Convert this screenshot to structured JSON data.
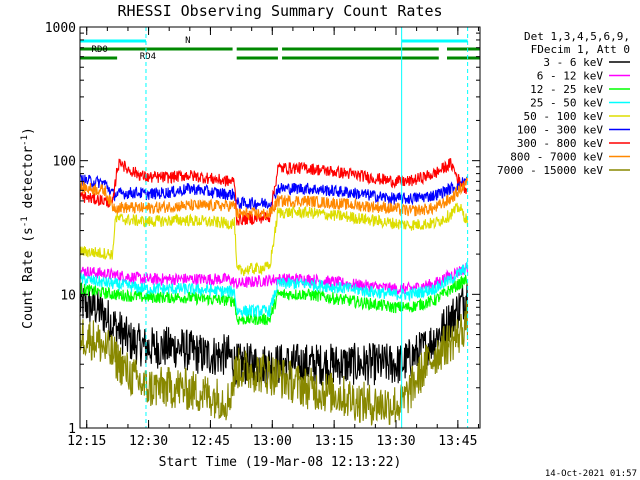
{
  "chart_data": {
    "type": "line",
    "title": "RHESSI Observing Summary Count Rates",
    "xlabel": "Start Time (19-Mar-08 12:13:22)",
    "ylabel_main": "Count Rate (s",
    "ylabel_sup": "-1",
    "ylabel_mid": " detector",
    "ylabel_sup2": "-1",
    "ylabel_end": ")",
    "y_scale": "log",
    "ylim": [
      1,
      1000
    ],
    "xlim_minutes": [
      0,
      97
    ],
    "x_ticks": [
      {
        "min": 1.63,
        "label": "12:15"
      },
      {
        "min": 16.63,
        "label": "12:30"
      },
      {
        "min": 31.63,
        "label": "12:45"
      },
      {
        "min": 46.63,
        "label": "13:00"
      },
      {
        "min": 61.63,
        "label": "13:15"
      },
      {
        "min": 76.63,
        "label": "13:30"
      },
      {
        "min": 91.63,
        "label": "13:45"
      }
    ],
    "y_ticks": [
      {
        "value": 1,
        "label": "1"
      },
      {
        "value": 10,
        "label": "10"
      },
      {
        "value": 100,
        "label": "100"
      },
      {
        "value": 1000,
        "label": "1000"
      }
    ],
    "legend_header": [
      "Det 1,3,4,5,6,9,",
      "FDecim 1, Att 0"
    ],
    "legend_position": "right",
    "flags": [
      {
        "label": "N",
        "color": "#00ffff",
        "segments": [
          [
            0,
            16
          ],
          [
            78,
            94
          ]
        ]
      },
      {
        "label": "RD0",
        "color": "#008800",
        "segments": [
          [
            0,
            37
          ],
          [
            38,
            48
          ],
          [
            49,
            87
          ],
          [
            89,
            97
          ]
        ]
      },
      {
        "label": "RD4",
        "color": "#008800",
        "segments": [
          [
            0,
            9
          ],
          [
            38,
            48
          ],
          [
            49,
            87
          ],
          [
            89,
            97
          ]
        ]
      }
    ],
    "vlines_solid_minutes": [
      0,
      78
    ],
    "vlines_dashed_minutes": [
      16,
      94
    ],
    "series": [
      {
        "name": "3 - 6 keV",
        "color": "#000000",
        "points": [
          [
            0,
            8.5
          ],
          [
            4,
            8
          ],
          [
            8,
            6
          ],
          [
            12,
            4.5
          ],
          [
            16,
            4
          ],
          [
            24,
            4
          ],
          [
            30,
            3.5
          ],
          [
            36,
            3.5
          ],
          [
            38,
            3
          ],
          [
            47,
            3
          ],
          [
            55,
            3
          ],
          [
            62,
            3
          ],
          [
            70,
            3
          ],
          [
            76,
            3
          ],
          [
            78,
            3
          ],
          [
            84,
            4
          ],
          [
            88,
            5.5
          ],
          [
            92,
            8
          ],
          [
            94,
            10.5
          ]
        ]
      },
      {
        "name": "6 - 12 keV",
        "color": "#ff00ff",
        "points": [
          [
            0,
            15
          ],
          [
            8,
            14
          ],
          [
            16,
            13
          ],
          [
            25,
            13
          ],
          [
            36,
            13
          ],
          [
            38,
            12
          ],
          [
            48,
            13
          ],
          [
            55,
            13
          ],
          [
            65,
            12
          ],
          [
            76,
            11
          ],
          [
            80,
            11
          ],
          [
            86,
            12
          ],
          [
            90,
            14
          ],
          [
            94,
            16
          ]
        ]
      },
      {
        "name": "12 - 25 keV",
        "color": "#00ff00",
        "points": [
          [
            0,
            11
          ],
          [
            8,
            10
          ],
          [
            16,
            9.5
          ],
          [
            25,
            9.5
          ],
          [
            36,
            9
          ],
          [
            37.5,
            9
          ],
          [
            38,
            6.5
          ],
          [
            46,
            6.5
          ],
          [
            48,
            10
          ],
          [
            55,
            10
          ],
          [
            65,
            9
          ],
          [
            76,
            8
          ],
          [
            80,
            8
          ],
          [
            86,
            9
          ],
          [
            90,
            11
          ],
          [
            94,
            13
          ]
        ]
      },
      {
        "name": "25 - 50 keV",
        "color": "#00ffff",
        "points": [
          [
            0,
            13
          ],
          [
            8,
            12
          ],
          [
            16,
            11
          ],
          [
            25,
            11
          ],
          [
            36,
            10.5
          ],
          [
            37.5,
            10.5
          ],
          [
            38,
            7.5
          ],
          [
            46,
            7.5
          ],
          [
            48,
            12
          ],
          [
            55,
            12
          ],
          [
            65,
            11
          ],
          [
            76,
            10
          ],
          [
            80,
            10
          ],
          [
            86,
            11
          ],
          [
            90,
            13
          ],
          [
            94,
            16
          ]
        ]
      },
      {
        "name": "50 - 100 keV",
        "color": "#dddd00",
        "points": [
          [
            0,
            21
          ],
          [
            8,
            20
          ],
          [
            8.5,
            37
          ],
          [
            16,
            35
          ],
          [
            25,
            36
          ],
          [
            36,
            34
          ],
          [
            37.5,
            34
          ],
          [
            38,
            15
          ],
          [
            46,
            16
          ],
          [
            48,
            41
          ],
          [
            55,
            41
          ],
          [
            65,
            38
          ],
          [
            76,
            34
          ],
          [
            80,
            33
          ],
          [
            86,
            34
          ],
          [
            89,
            38
          ],
          [
            92,
            45
          ],
          [
            94,
            35
          ]
        ]
      },
      {
        "name": "100 - 300 keV",
        "color": "#0000ff",
        "points": [
          [
            0,
            72
          ],
          [
            6,
            68
          ],
          [
            8,
            56
          ],
          [
            14,
            58
          ],
          [
            16,
            56
          ],
          [
            22,
            58
          ],
          [
            27,
            62
          ],
          [
            32,
            58
          ],
          [
            36,
            56
          ],
          [
            37.5,
            56
          ],
          [
            38,
            48
          ],
          [
            46,
            48
          ],
          [
            48,
            62
          ],
          [
            55,
            62
          ],
          [
            65,
            58
          ],
          [
            76,
            52
          ],
          [
            80,
            52
          ],
          [
            86,
            55
          ],
          [
            90,
            62
          ],
          [
            94,
            72
          ]
        ]
      },
      {
        "name": "300 - 800 keV",
        "color": "#ff0000",
        "points": [
          [
            0,
            54
          ],
          [
            6,
            50
          ],
          [
            8,
            48
          ],
          [
            9,
            88
          ],
          [
            10,
            100
          ],
          [
            11,
            88
          ],
          [
            16,
            75
          ],
          [
            22,
            75
          ],
          [
            26,
            78
          ],
          [
            31,
            74
          ],
          [
            36,
            70
          ],
          [
            37.5,
            70
          ],
          [
            38,
            36
          ],
          [
            46,
            38
          ],
          [
            48,
            88
          ],
          [
            55,
            88
          ],
          [
            65,
            80
          ],
          [
            76,
            70
          ],
          [
            80,
            70
          ],
          [
            86,
            80
          ],
          [
            90,
            95
          ],
          [
            92,
            70
          ],
          [
            94,
            60
          ]
        ]
      },
      {
        "name": "800 - 7000 keV",
        "color": "#ff8800",
        "points": [
          [
            0,
            63
          ],
          [
            6,
            60
          ],
          [
            8,
            45
          ],
          [
            16,
            44
          ],
          [
            25,
            46
          ],
          [
            36,
            46
          ],
          [
            37.5,
            46
          ],
          [
            38,
            40
          ],
          [
            46,
            40
          ],
          [
            48,
            50
          ],
          [
            55,
            50
          ],
          [
            65,
            47
          ],
          [
            76,
            44
          ],
          [
            80,
            42
          ],
          [
            86,
            44
          ],
          [
            90,
            52
          ],
          [
            94,
            70
          ]
        ]
      },
      {
        "name": "7000 - 15000 keV",
        "color": "#888800",
        "points": [
          [
            0,
            5
          ],
          [
            4,
            4.5
          ],
          [
            8,
            3.5
          ],
          [
            12,
            2.5
          ],
          [
            16,
            2
          ],
          [
            24,
            2
          ],
          [
            30,
            1.8
          ],
          [
            36,
            1.6
          ],
          [
            38,
            2.8
          ],
          [
            47,
            2.5
          ],
          [
            55,
            2
          ],
          [
            62,
            1.8
          ],
          [
            70,
            1.5
          ],
          [
            76,
            1.5
          ],
          [
            78,
            1.5
          ],
          [
            84,
            3
          ],
          [
            88,
            4
          ],
          [
            92,
            5
          ],
          [
            94,
            6.5
          ]
        ]
      }
    ]
  },
  "footer": {
    "timestamp": "14-Oct-2021 01:57"
  }
}
